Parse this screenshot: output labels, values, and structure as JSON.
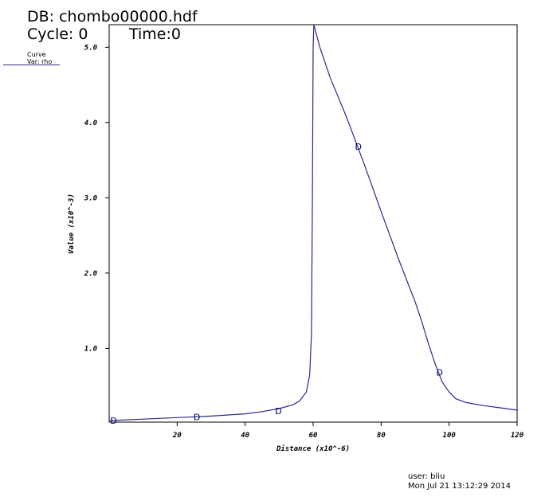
{
  "header": {
    "db": "DB: chombo00000.hdf",
    "cycle": "Cycle: 0",
    "time": "Time:0"
  },
  "legend": {
    "title": "Curve",
    "var": "Var: rho",
    "color": "#2a2a8a"
  },
  "footer": {
    "user": "user: bliu",
    "date": "Mon Jul 21 13:12:29 2014"
  },
  "chart_data": {
    "type": "line",
    "xlabel": "Distance (x10^-6)",
    "ylabel": "Value (x10^-3)",
    "xlim": [
      0,
      120
    ],
    "ylim": [
      0.02,
      5.3
    ],
    "xticks": [
      20,
      40,
      60,
      80,
      100,
      120
    ],
    "xtick_labels": [
      "20",
      "40",
      "60",
      "80",
      "100",
      "120"
    ],
    "yticks": [
      1.0,
      2.0,
      3.0,
      4.0,
      5.0
    ],
    "ytick_labels": [
      "1.0",
      "2.0",
      "3.0",
      "4.0",
      "5.0"
    ],
    "grid": false,
    "series": [
      {
        "color": "#2a2a8a",
        "x": [
          0,
          10,
          20,
          30,
          40,
          45,
          50,
          54,
          56,
          58,
          59,
          59.5,
          59.8,
          60,
          60.2,
          62,
          65,
          70,
          75,
          80,
          85,
          88,
          90,
          92,
          94,
          96,
          98,
          100,
          102,
          105,
          110,
          115,
          120
        ],
        "y": [
          0.04,
          0.06,
          0.08,
          0.1,
          0.13,
          0.16,
          0.2,
          0.25,
          0.3,
          0.42,
          0.65,
          1.2,
          3.0,
          5.0,
          5.3,
          5.0,
          4.6,
          4.05,
          3.45,
          2.82,
          2.2,
          1.85,
          1.62,
          1.35,
          1.05,
          0.78,
          0.55,
          0.42,
          0.33,
          0.28,
          0.24,
          0.21,
          0.18
        ]
      }
    ],
    "markers": [
      {
        "label": "D",
        "x": 1.3,
        "y": 0.04
      },
      {
        "label": "D",
        "x": 25.8,
        "y": 0.09
      },
      {
        "label": "D",
        "x": 49.8,
        "y": 0.17
      },
      {
        "label": "D",
        "x": 73.3,
        "y": 3.68
      },
      {
        "label": "D",
        "x": 97.2,
        "y": 0.68
      }
    ]
  }
}
